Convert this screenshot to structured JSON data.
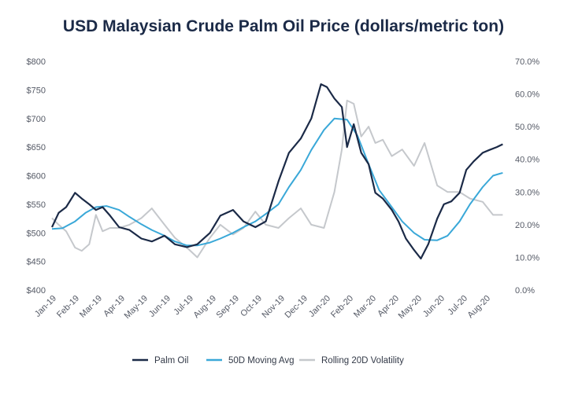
{
  "chart_data": {
    "type": "line",
    "title": "USD Malaysian Crude Palm Oil Price (dollars/metric ton)",
    "x_ticks": [
      "Jan-19",
      "Feb-19",
      "Mar-19",
      "Apr-19",
      "May-19",
      "Jun-19",
      "Jul-19",
      "Aug-19",
      "Sep-19",
      "Oct-19",
      "Nov-19",
      "Dec-19",
      "Jan-20",
      "Feb-20",
      "Mar-20",
      "Apr-20",
      "May-20",
      "Jun-20",
      "Jul-20",
      "Aug-20"
    ],
    "y_left": {
      "ticks": [
        "$400",
        "$450",
        "$500",
        "$550",
        "$600",
        "$650",
        "$700",
        "$750",
        "$800"
      ],
      "min": 400,
      "max": 800
    },
    "y_right": {
      "ticks": [
        "0.0%",
        "10.0%",
        "20.0%",
        "30.0%",
        "40.0%",
        "50.0%",
        "60.0%",
        "70.0%"
      ],
      "min": 0,
      "max": 70
    },
    "grid": false,
    "legend_position": "bottom",
    "series": [
      {
        "name": "Palm Oil",
        "axis": "left",
        "color": "#1b2a47",
        "x": [
          "2019-01-01",
          "2019-01-10",
          "2019-01-20",
          "2019-02-01",
          "2019-02-10",
          "2019-02-20",
          "2019-03-01",
          "2019-03-10",
          "2019-03-20",
          "2019-04-01",
          "2019-04-15",
          "2019-05-01",
          "2019-05-15",
          "2019-06-01",
          "2019-06-15",
          "2019-07-01",
          "2019-07-15",
          "2019-08-01",
          "2019-08-15",
          "2019-09-01",
          "2019-09-15",
          "2019-10-01",
          "2019-10-15",
          "2019-11-01",
          "2019-11-15",
          "2019-12-01",
          "2019-12-15",
          "2019-12-28",
          "2020-01-05",
          "2020-01-15",
          "2020-01-25",
          "2020-02-01",
          "2020-02-10",
          "2020-02-20",
          "2020-03-01",
          "2020-03-10",
          "2020-03-20",
          "2020-04-01",
          "2020-04-10",
          "2020-04-20",
          "2020-05-01",
          "2020-05-10",
          "2020-05-20",
          "2020-06-01",
          "2020-06-10",
          "2020-06-20",
          "2020-07-01",
          "2020-07-10",
          "2020-07-20",
          "2020-08-01",
          "2020-08-10",
          "2020-08-20",
          "2020-08-28"
        ],
        "values": [
          510,
          535,
          545,
          570,
          560,
          550,
          540,
          545,
          530,
          510,
          505,
          490,
          485,
          495,
          480,
          475,
          480,
          500,
          530,
          540,
          520,
          510,
          520,
          590,
          640,
          665,
          700,
          760,
          755,
          735,
          720,
          650,
          690,
          640,
          620,
          570,
          560,
          540,
          520,
          490,
          470,
          455,
          480,
          525,
          550,
          555,
          570,
          610,
          625,
          640,
          645,
          650,
          655
        ]
      },
      {
        "name": "50D Moving Avg",
        "axis": "left",
        "color": "#3aa8d8",
        "x": [
          "2019-01-01",
          "2019-01-15",
          "2019-02-01",
          "2019-02-15",
          "2019-03-01",
          "2019-03-15",
          "2019-04-01",
          "2019-04-15",
          "2019-05-01",
          "2019-05-15",
          "2019-06-01",
          "2019-06-15",
          "2019-07-01",
          "2019-07-15",
          "2019-08-01",
          "2019-08-15",
          "2019-09-01",
          "2019-09-15",
          "2019-10-01",
          "2019-10-15",
          "2019-11-01",
          "2019-11-15",
          "2019-12-01",
          "2019-12-15",
          "2020-01-01",
          "2020-01-15",
          "2020-02-01",
          "2020-02-15",
          "2020-03-01",
          "2020-03-15",
          "2020-04-01",
          "2020-04-15",
          "2020-05-01",
          "2020-05-15",
          "2020-06-01",
          "2020-06-15",
          "2020-07-01",
          "2020-07-15",
          "2020-08-01",
          "2020-08-15",
          "2020-08-28"
        ],
        "values": [
          507,
          508,
          520,
          535,
          545,
          547,
          540,
          528,
          515,
          505,
          495,
          485,
          478,
          478,
          483,
          490,
          500,
          510,
          520,
          533,
          550,
          580,
          610,
          645,
          680,
          700,
          698,
          670,
          620,
          575,
          545,
          520,
          500,
          488,
          487,
          495,
          520,
          550,
          580,
          600,
          605
        ]
      },
      {
        "name": "Rolling 20D Volatility",
        "axis": "right",
        "color": "#c5c8cc",
        "x": [
          "2019-01-01",
          "2019-01-10",
          "2019-01-20",
          "2019-02-01",
          "2019-02-10",
          "2019-02-20",
          "2019-03-01",
          "2019-03-10",
          "2019-03-20",
          "2019-04-01",
          "2019-04-15",
          "2019-05-01",
          "2019-05-15",
          "2019-06-01",
          "2019-06-15",
          "2019-07-01",
          "2019-07-15",
          "2019-08-01",
          "2019-08-15",
          "2019-09-01",
          "2019-09-15",
          "2019-10-01",
          "2019-10-15",
          "2019-11-01",
          "2019-11-15",
          "2019-12-01",
          "2019-12-15",
          "2020-01-01",
          "2020-01-15",
          "2020-01-25",
          "2020-02-01",
          "2020-02-10",
          "2020-02-20",
          "2020-03-01",
          "2020-03-10",
          "2020-03-20",
          "2020-04-01",
          "2020-04-15",
          "2020-05-01",
          "2020-05-15",
          "2020-06-01",
          "2020-06-15",
          "2020-07-01",
          "2020-07-15",
          "2020-08-01",
          "2020-08-15",
          "2020-08-28"
        ],
        "values": [
          22,
          20,
          18,
          13,
          12,
          14,
          23,
          18,
          19,
          19,
          20,
          22,
          25,
          20,
          16,
          13,
          10,
          16,
          20,
          17,
          19,
          24,
          20,
          19,
          22,
          25,
          20,
          19,
          30,
          43,
          58,
          57,
          47,
          50,
          45,
          46,
          41,
          43,
          38,
          45,
          32,
          30,
          30,
          28,
          27,
          23,
          23
        ]
      }
    ]
  }
}
